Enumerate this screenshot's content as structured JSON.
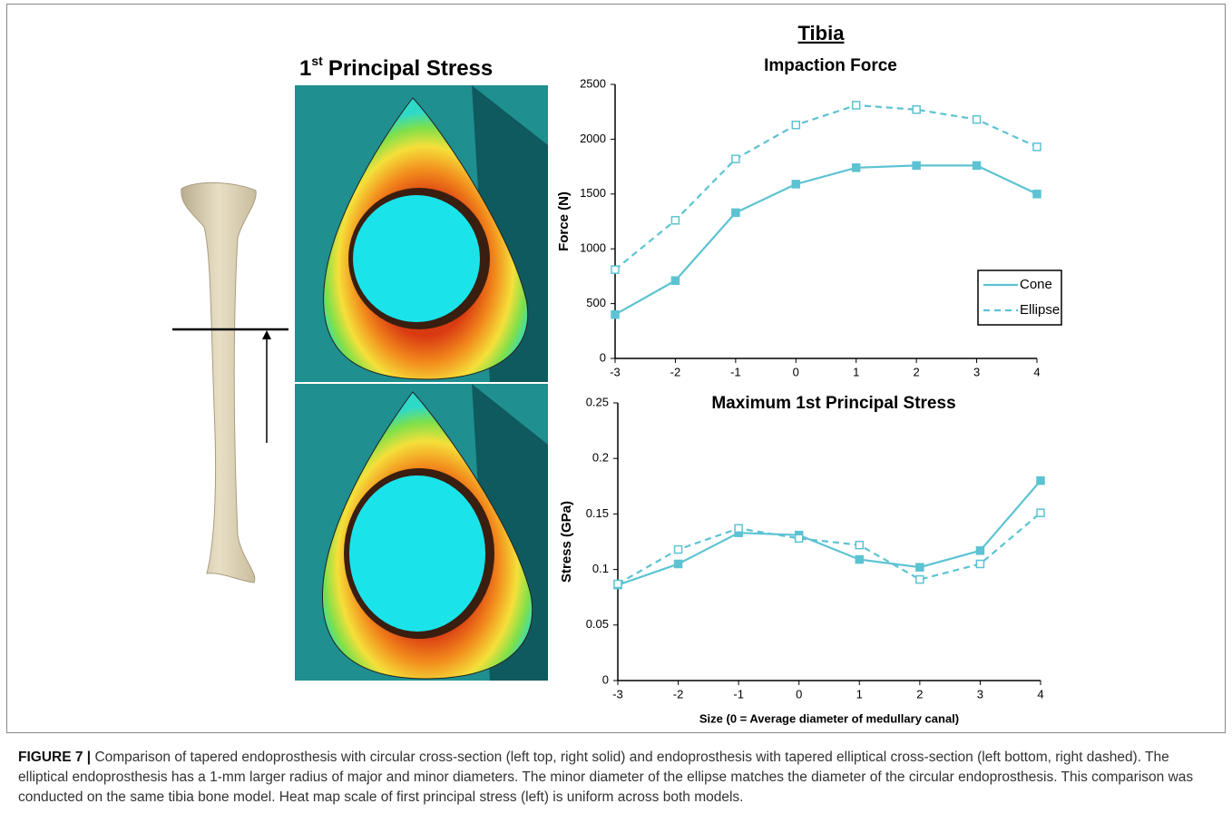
{
  "figure": {
    "heading": {
      "number": "1",
      "superscript": "st",
      "text": "Principal Stress"
    },
    "group_title": "Tibia",
    "caption": {
      "label": "FIGURE 7 |",
      "text": "Comparison of tapered endoprosthesis with circular cross-section (left top, right solid) and endoprosthesis with tapered elliptical cross-section (left bottom, right dashed). The elliptical endoprosthesis has a 1-mm larger radius of major and minor diameters. The minor diameter of the ellipse matches the diameter of the circular endoprosthesis. This comparison was conducted on the same tibia bone model. Heat map scale of first principal stress (left) is uniform across both models."
    }
  },
  "chart_data": [
    {
      "type": "line",
      "title": "Impaction Force",
      "ylabel": "Force (N)",
      "x": [
        -3,
        -2,
        -1,
        0,
        1,
        2,
        3,
        4
      ],
      "xlim": [
        -3,
        4
      ],
      "xticks": [
        -3,
        -2,
        -1,
        0,
        1,
        2,
        3,
        4
      ],
      "ylim": [
        0,
        2500
      ],
      "yticks": [
        0,
        500,
        1000,
        1500,
        2000,
        2500
      ],
      "legend": "right",
      "series": [
        {
          "name": "Cone",
          "color": "#5cc3d2",
          "style": "solid",
          "marker": "filled",
          "values": [
            400,
            710,
            1330,
            1590,
            1740,
            1760,
            1760,
            1500
          ]
        },
        {
          "name": "Ellipse",
          "color": "#5cc3d2",
          "style": "dashed",
          "marker": "open",
          "values": [
            810,
            1260,
            1820,
            2130,
            2310,
            2270,
            2180,
            1930
          ]
        }
      ]
    },
    {
      "type": "line",
      "title": "Maximum 1st Principal Stress",
      "ylabel": "Stress (GPa)",
      "xlabel": "Size (0 = Average diameter of medullary canal)",
      "x": [
        -3,
        -2,
        -1,
        0,
        1,
        2,
        3,
        4
      ],
      "xlim": [
        -3,
        4
      ],
      "xticks": [
        -3,
        -2,
        -1,
        0,
        1,
        2,
        3,
        4
      ],
      "ylim": [
        0,
        0.25
      ],
      "yticks": [
        0,
        0.05,
        0.1,
        0.15,
        0.2,
        0.25
      ],
      "series": [
        {
          "name": "Cone",
          "color": "#5cc3d2",
          "style": "solid",
          "marker": "filled",
          "values": [
            0.086,
            0.105,
            0.133,
            0.131,
            0.109,
            0.102,
            0.117,
            0.18
          ]
        },
        {
          "name": "Ellipse",
          "color": "#5cc3d2",
          "style": "dashed",
          "marker": "open",
          "values": [
            0.087,
            0.118,
            0.137,
            0.128,
            0.122,
            0.091,
            0.105,
            0.151
          ]
        }
      ]
    }
  ]
}
